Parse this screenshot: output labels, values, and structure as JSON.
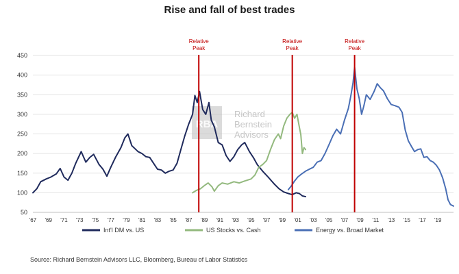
{
  "chart_data": {
    "type": "line",
    "title": "Rise and fall of best trades",
    "source": "Source: Richard Bernstein Advisors LLC, Bloomberg, Bureau of Labor Statistics",
    "watermark": {
      "logo_text": "RBA",
      "text_lines": [
        "Richard",
        "Bernstein",
        "Advisors"
      ]
    },
    "ylim": [
      50,
      450
    ],
    "yticks": [
      50,
      100,
      150,
      200,
      250,
      300,
      350,
      400,
      450
    ],
    "xlim": [
      1967,
      2021
    ],
    "xtick_labels": [
      "'67",
      "'69",
      "'71",
      "'73",
      "'75",
      "'77",
      "'79",
      "'81",
      "'83",
      "'85",
      "'87",
      "'89",
      "'91",
      "'93",
      "'95",
      "'97",
      "'99",
      "'01",
      "'03",
      "'05",
      "'07",
      "'09",
      "'11",
      "'13",
      "'15",
      "'17",
      "'19"
    ],
    "grid": true,
    "legend_position": "bottom",
    "annotations": [
      {
        "label_lines": [
          "Relative",
          "Peak"
        ],
        "x": 1988.3,
        "color": "#c00000"
      },
      {
        "label_lines": [
          "Relative",
          "Peak"
        ],
        "x": 2000.3,
        "color": "#c00000"
      },
      {
        "label_lines": [
          "Relative",
          "Peak"
        ],
        "x": 2008.3,
        "color": "#c00000"
      }
    ],
    "series": [
      {
        "name": "Int'l DM vs. US",
        "color": "#1f2a5c",
        "points": [
          [
            1967,
            100
          ],
          [
            1967.5,
            110
          ],
          [
            1968,
            128
          ],
          [
            1968.7,
            135
          ],
          [
            1969.3,
            140
          ],
          [
            1970,
            148
          ],
          [
            1970.5,
            162
          ],
          [
            1971,
            140
          ],
          [
            1971.5,
            132
          ],
          [
            1972,
            150
          ],
          [
            1972.5,
            175
          ],
          [
            1973.2,
            205
          ],
          [
            1973.8,
            178
          ],
          [
            1974.3,
            190
          ],
          [
            1974.8,
            198
          ],
          [
            1975.5,
            172
          ],
          [
            1976,
            160
          ],
          [
            1976.5,
            142
          ],
          [
            1977,
            165
          ],
          [
            1977.6,
            190
          ],
          [
            1978.3,
            215
          ],
          [
            1978.8,
            240
          ],
          [
            1979.2,
            250
          ],
          [
            1979.7,
            220
          ],
          [
            1980.5,
            205
          ],
          [
            1981,
            200
          ],
          [
            1981.5,
            192
          ],
          [
            1982,
            190
          ],
          [
            1982.5,
            175
          ],
          [
            1983,
            160
          ],
          [
            1983.5,
            158
          ],
          [
            1984,
            150
          ],
          [
            1984.5,
            155
          ],
          [
            1985,
            158
          ],
          [
            1985.5,
            175
          ],
          [
            1986,
            210
          ],
          [
            1986.5,
            245
          ],
          [
            1987,
            275
          ],
          [
            1987.5,
            300
          ],
          [
            1987.8,
            348
          ],
          [
            1988.1,
            330
          ],
          [
            1988.4,
            358
          ],
          [
            1988.8,
            312
          ],
          [
            1989.2,
            300
          ],
          [
            1989.6,
            330
          ],
          [
            1989.9,
            285
          ],
          [
            1990.3,
            268
          ],
          [
            1990.8,
            228
          ],
          [
            1991.3,
            222
          ],
          [
            1991.8,
            195
          ],
          [
            1992.3,
            180
          ],
          [
            1992.8,
            192
          ],
          [
            1993.3,
            210
          ],
          [
            1993.8,
            222
          ],
          [
            1994.2,
            228
          ],
          [
            1994.8,
            205
          ],
          [
            1995.3,
            190
          ],
          [
            1995.8,
            172
          ],
          [
            1996.5,
            155
          ],
          [
            1997.2,
            140
          ],
          [
            1998,
            122
          ],
          [
            1998.6,
            110
          ],
          [
            1999.2,
            102
          ],
          [
            1999.8,
            98
          ],
          [
            2000.3,
            95
          ],
          [
            2000.8,
            100
          ],
          [
            2001.2,
            98
          ],
          [
            2001.6,
            92
          ],
          [
            2002,
            90
          ]
        ]
      },
      {
        "name": "US Stocks vs. Cash",
        "color": "#93b97e",
        "points": [
          [
            1987.5,
            100
          ],
          [
            1988,
            106
          ],
          [
            1988.5,
            110
          ],
          [
            1989,
            118
          ],
          [
            1989.5,
            125
          ],
          [
            1990,
            115
          ],
          [
            1990.3,
            104
          ],
          [
            1990.8,
            118
          ],
          [
            1991.3,
            125
          ],
          [
            1992,
            122
          ],
          [
            1992.8,
            128
          ],
          [
            1993.5,
            125
          ],
          [
            1994.2,
            130
          ],
          [
            1995,
            135
          ],
          [
            1995.5,
            145
          ],
          [
            1996,
            165
          ],
          [
            1996.5,
            172
          ],
          [
            1997,
            182
          ],
          [
            1997.5,
            210
          ],
          [
            1998,
            235
          ],
          [
            1998.5,
            250
          ],
          [
            1998.8,
            238
          ],
          [
            1999.2,
            270
          ],
          [
            1999.6,
            290
          ],
          [
            2000,
            300
          ],
          [
            2000.3,
            305
          ],
          [
            2000.6,
            290
          ],
          [
            2000.9,
            300
          ],
          [
            2001.2,
            268
          ],
          [
            2001.4,
            248
          ],
          [
            2001.6,
            200
          ],
          [
            2001.8,
            215
          ],
          [
            2002,
            210
          ]
        ]
      },
      {
        "name": "Energy vs. Broad Market",
        "color": "#4a6fb5",
        "points": [
          [
            1999.8,
            108
          ],
          [
            2000.2,
            118
          ],
          [
            2000.6,
            130
          ],
          [
            2001,
            140
          ],
          [
            2001.5,
            148
          ],
          [
            2002,
            155
          ],
          [
            2002.5,
            160
          ],
          [
            2003,
            165
          ],
          [
            2003.5,
            178
          ],
          [
            2004,
            182
          ],
          [
            2004.5,
            200
          ],
          [
            2005,
            222
          ],
          [
            2005.5,
            245
          ],
          [
            2006,
            262
          ],
          [
            2006.5,
            250
          ],
          [
            2007,
            285
          ],
          [
            2007.5,
            315
          ],
          [
            2007.8,
            345
          ],
          [
            2008.1,
            380
          ],
          [
            2008.3,
            420
          ],
          [
            2008.6,
            365
          ],
          [
            2008.9,
            340
          ],
          [
            2009.2,
            300
          ],
          [
            2009.5,
            322
          ],
          [
            2009.8,
            350
          ],
          [
            2010.3,
            338
          ],
          [
            2010.8,
            358
          ],
          [
            2011.2,
            378
          ],
          [
            2011.6,
            368
          ],
          [
            2012,
            360
          ],
          [
            2012.5,
            340
          ],
          [
            2013,
            325
          ],
          [
            2013.5,
            322
          ],
          [
            2014,
            318
          ],
          [
            2014.4,
            305
          ],
          [
            2014.8,
            260
          ],
          [
            2015.2,
            232
          ],
          [
            2015.6,
            218
          ],
          [
            2016,
            205
          ],
          [
            2016.4,
            210
          ],
          [
            2016.8,
            212
          ],
          [
            2017.2,
            190
          ],
          [
            2017.6,
            192
          ],
          [
            2018,
            182
          ],
          [
            2018.4,
            178
          ],
          [
            2018.8,
            170
          ],
          [
            2019.2,
            158
          ],
          [
            2019.6,
            138
          ],
          [
            2020,
            110
          ],
          [
            2020.3,
            82
          ],
          [
            2020.6,
            70
          ],
          [
            2021,
            66
          ]
        ]
      }
    ]
  }
}
